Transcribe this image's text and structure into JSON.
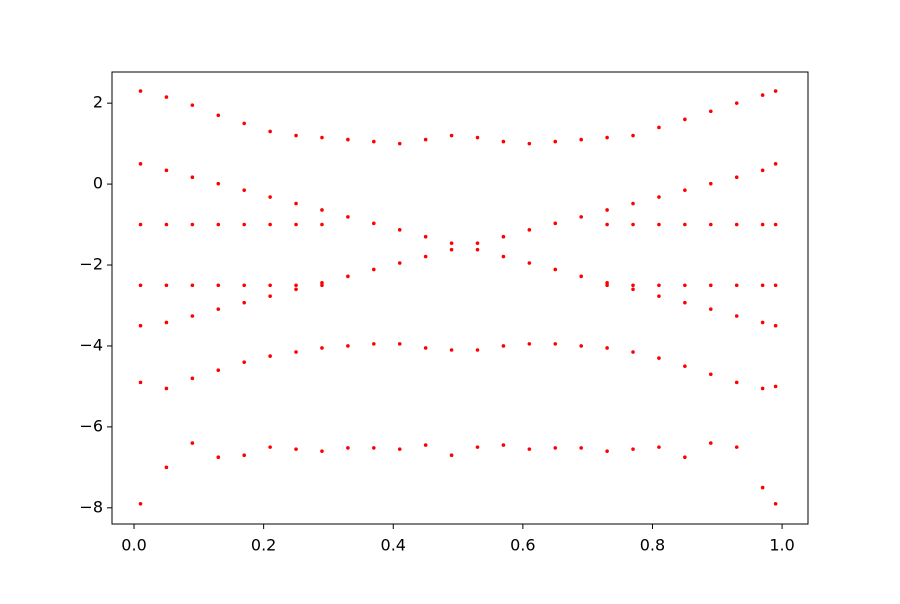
{
  "chart_data": {
    "type": "scatter",
    "x": [
      0.01,
      0.05,
      0.09,
      0.13,
      0.17,
      0.21,
      0.25,
      0.29,
      0.33,
      0.37,
      0.41,
      0.45,
      0.49,
      0.53,
      0.57,
      0.61,
      0.65,
      0.69,
      0.73,
      0.77,
      0.81,
      0.85,
      0.89,
      0.93,
      0.97,
      0.99
    ],
    "series": [
      {
        "color": "#ff0000",
        "values": [
          -7.9,
          -7.0,
          -6.4,
          -6.75,
          -6.7,
          -6.5,
          -6.55,
          -6.6,
          -6.52,
          -6.52,
          -6.55,
          -6.45,
          -6.7,
          -6.5,
          -6.45,
          -6.55,
          -6.52,
          -6.52,
          -6.6,
          -6.55,
          -6.5,
          -6.75,
          -6.4,
          -6.5,
          -7.5,
          -7.9
        ]
      },
      {
        "color": "#ff0000",
        "values": [
          2.3,
          2.15,
          1.95,
          1.7,
          1.5,
          1.3,
          1.2,
          1.15,
          1.1,
          1.05,
          1.0,
          1.1,
          1.2,
          1.15,
          1.05,
          1.0,
          1.05,
          1.1,
          1.15,
          1.2,
          1.4,
          1.6,
          1.8,
          2.0,
          2.2,
          2.3
        ]
      },
      {
        "color": "#ff0000",
        "values": [
          -4.9,
          -5.05,
          -4.8,
          -4.6,
          -4.4,
          -4.25,
          -4.15,
          -4.05,
          -4.0,
          -3.95,
          -3.95,
          -4.05,
          -4.1,
          -4.1,
          -4.0,
          -3.95,
          -3.95,
          -4.0,
          -4.05,
          -4.15,
          -4.3,
          -4.5,
          -4.7,
          -4.9,
          -5.05,
          -5.0
        ]
      },
      {
        "color": "#ff0000",
        "values": [
          0.5,
          0.34,
          0.17,
          0.01,
          -0.15,
          -0.32,
          -0.48,
          -0.64,
          -0.81,
          -0.97,
          -1.13,
          -1.3,
          -1.46,
          -1.62,
          -1.79,
          -1.95,
          -2.11,
          -2.28,
          -2.44,
          -2.6,
          -2.77,
          -2.93,
          -3.09,
          -3.26,
          -3.42,
          -3.5
        ]
      },
      {
        "color": "#ff0000",
        "values": [
          -3.5,
          -3.42,
          -3.26,
          -3.09,
          -2.93,
          -2.77,
          -2.6,
          -2.44,
          -2.28,
          -2.11,
          -1.95,
          -1.79,
          -1.62,
          -1.46,
          -1.3,
          -1.13,
          -0.97,
          -0.81,
          -0.64,
          -0.48,
          -0.32,
          -0.15,
          0.01,
          0.17,
          0.34,
          0.5
        ]
      },
      {
        "color": "#ff0000",
        "values": [
          -1.0,
          -1.0,
          -1.0,
          -1.0,
          -1.0,
          -1.0,
          -1.0,
          -1.0,
          null,
          null,
          null,
          null,
          null,
          null,
          null,
          null,
          null,
          null,
          -1.0,
          -1.0,
          -1.0,
          -1.0,
          -1.0,
          -1.0,
          -1.0,
          -1.0
        ]
      },
      {
        "color": "#ff0000",
        "values": [
          -2.5,
          -2.5,
          -2.5,
          -2.5,
          -2.5,
          -2.5,
          -2.5,
          -2.5,
          null,
          null,
          null,
          null,
          null,
          null,
          null,
          null,
          null,
          null,
          -2.5,
          -2.5,
          -2.5,
          -2.5,
          -2.5,
          -2.5,
          -2.5,
          -2.5
        ]
      }
    ],
    "xlim": [
      -0.034,
      1.04
    ],
    "ylim": [
      -8.4,
      2.77
    ],
    "xticks": [
      {
        "value": 0,
        "label": "0.0"
      },
      {
        "value": 0.2,
        "label": "0.2"
      },
      {
        "value": 0.4,
        "label": "0.4"
      },
      {
        "value": 0.6,
        "label": "0.6"
      },
      {
        "value": 0.8,
        "label": "0.8"
      },
      {
        "value": 1,
        "label": "1.0"
      }
    ],
    "yticks": [
      {
        "value": -8,
        "label": "−8"
      },
      {
        "value": -6,
        "label": "−6"
      },
      {
        "value": -4,
        "label": "−4"
      },
      {
        "value": -2,
        "label": "−2"
      },
      0,
      2
    ],
    "grid": false
  }
}
